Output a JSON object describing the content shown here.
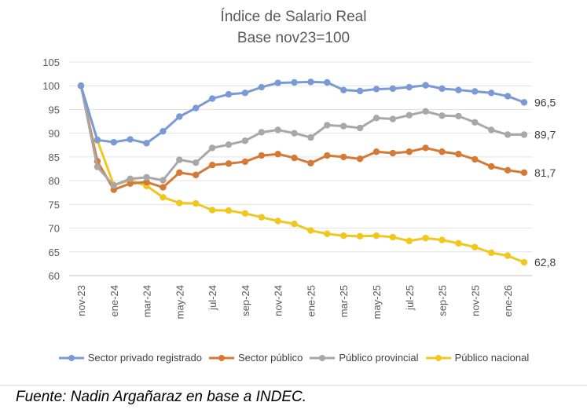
{
  "chart_data": {
    "type": "line",
    "title": "Índice de Salario Real",
    "subtitle": "Base nov23=100",
    "xlabel": "",
    "ylabel": "",
    "ylim": [
      60,
      105
    ],
    "yticks": [
      "60",
      "65",
      "70",
      "75",
      "80",
      "85",
      "90",
      "95",
      "100",
      "105"
    ],
    "categories": [
      "nov-23",
      "dic-23",
      "ene-24",
      "feb-24",
      "mar-24",
      "abr-24",
      "may-24",
      "jun-24",
      "jul-24",
      "ago-24",
      "sep-24",
      "oct-24",
      "nov-24",
      "dic-24",
      "ene-25",
      "feb-25",
      "mar-25",
      "abr-25",
      "may-25",
      "jun-25",
      "jul-25",
      "ago-25",
      "sep-25",
      "oct-25",
      "nov-25",
      "dic-25",
      "ene-26",
      "feb-26"
    ],
    "xticks": [
      "nov-23",
      "ene-24",
      "mar-24",
      "may-24",
      "jul-24",
      "sep-24",
      "nov-24",
      "ene-25",
      "mar-25",
      "may-25",
      "jul-25",
      "sep-25",
      "nov-25",
      "ene-26"
    ],
    "grid": true,
    "legend": "bottom",
    "series": [
      {
        "name": "Sector privado registrado",
        "color": "#7a9ad6",
        "end_label": "96,5",
        "values": [
          100,
          88.6,
          88.1,
          88.7,
          87.9,
          90.4,
          93.5,
          95.3,
          97.3,
          98.2,
          98.5,
          99.7,
          100.6,
          100.7,
          100.8,
          100.7,
          99.1,
          98.9,
          99.3,
          99.4,
          99.7,
          100.1,
          99.4,
          99.1,
          98.8,
          98.5,
          97.8,
          96.5
        ]
      },
      {
        "name": "Sector público",
        "color": "#d57a36",
        "end_label": "81,7",
        "values": [
          100,
          84.1,
          78.1,
          79.4,
          79.7,
          78.6,
          81.7,
          81.2,
          83.3,
          83.6,
          84.0,
          85.3,
          85.6,
          84.8,
          83.7,
          85.3,
          85.0,
          84.6,
          86.1,
          85.8,
          86.1,
          86.9,
          86.1,
          85.6,
          84.5,
          83.0,
          82.2,
          81.7
        ]
      },
      {
        "name": "Público provincial",
        "color": "#a8a8a8",
        "end_label": "89,7",
        "values": [
          100,
          82.9,
          79.0,
          80.4,
          80.7,
          80.1,
          84.4,
          83.8,
          86.9,
          87.6,
          88.4,
          90.2,
          90.7,
          90.0,
          89.1,
          91.7,
          91.5,
          91.1,
          93.2,
          93.0,
          93.8,
          94.6,
          93.7,
          93.6,
          92.3,
          90.7,
          89.7,
          89.7
        ]
      },
      {
        "name": "Público nacional",
        "color": "#f0c71f",
        "end_label": "62,8",
        "values": [
          100,
          88.5,
          79.1,
          80.1,
          78.9,
          76.5,
          75.3,
          75.2,
          73.8,
          73.7,
          73.1,
          72.3,
          71.5,
          70.9,
          69.5,
          68.8,
          68.4,
          68.3,
          68.4,
          68.1,
          67.3,
          67.9,
          67.5,
          66.8,
          66.0,
          64.8,
          64.2,
          62.8
        ]
      }
    ]
  },
  "source_text": "Fuente: Nadin Argañaraz en base a INDEC."
}
